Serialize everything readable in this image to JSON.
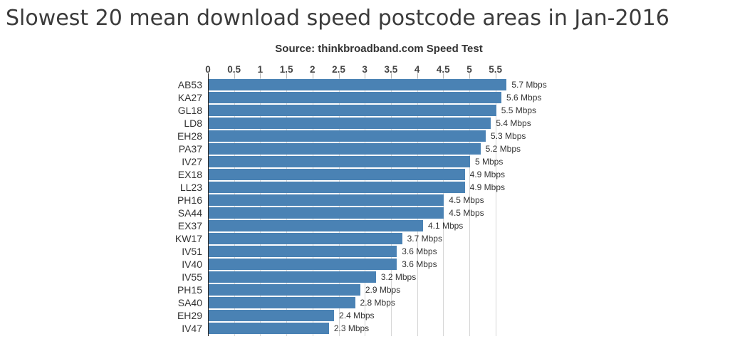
{
  "chart_data": {
    "type": "bar",
    "orientation": "horizontal",
    "title": "Slowest 20 mean download speed postcode areas in Jan-2016",
    "subtitle": "Source: thinkbroadband.com Speed Test",
    "unit": "Mbps",
    "categories": [
      "AB53",
      "KA27",
      "GL18",
      "LD8",
      "EH28",
      "PA37",
      "IV27",
      "EX18",
      "LL23",
      "PH16",
      "SA44",
      "EX37",
      "KW17",
      "IV51",
      "IV40",
      "IV55",
      "PH15",
      "SA40",
      "EH29",
      "IV47"
    ],
    "values": [
      5.7,
      5.6,
      5.5,
      5.4,
      5.3,
      5.2,
      5.0,
      4.9,
      4.9,
      4.5,
      4.5,
      4.1,
      3.7,
      3.6,
      3.6,
      3.2,
      2.9,
      2.8,
      2.4,
      2.3
    ],
    "value_labels": [
      "5.7 Mbps",
      "5.6 Mbps",
      "5.5 Mbps",
      "5.4 Mbps",
      "5.3 Mbps",
      "5.2 Mbps",
      "5 Mbps",
      "4.9 Mbps",
      "4.9 Mbps",
      "4.5 Mbps",
      "4.5 Mbps",
      "4.1 Mbps",
      "3.7 Mbps",
      "3.6 Mbps",
      "3.6 Mbps",
      "3.2 Mbps",
      "2.9 Mbps",
      "2.8 Mbps",
      "2.4 Mbps",
      "2.3 Mbps"
    ],
    "x_ticks": [
      0,
      0.5,
      1,
      1.5,
      2,
      2.5,
      3,
      3.5,
      4,
      4.5,
      5,
      5.5
    ],
    "x_tick_labels": [
      "0",
      "0.5",
      "1",
      "1.5",
      "2",
      "2.5",
      "3",
      "3.5",
      "4",
      "4.5",
      "5",
      "5.5"
    ],
    "xlim": [
      0,
      5.8
    ],
    "grid": "vertical-only",
    "legend": "none",
    "colors": {
      "bar": "#4a82b4",
      "gridline": "#d6d6d6",
      "axis_line": "#2b2b2b",
      "title_text": "#3b3b3b",
      "tick_text": "#444444",
      "label_text": "#333333"
    }
  }
}
